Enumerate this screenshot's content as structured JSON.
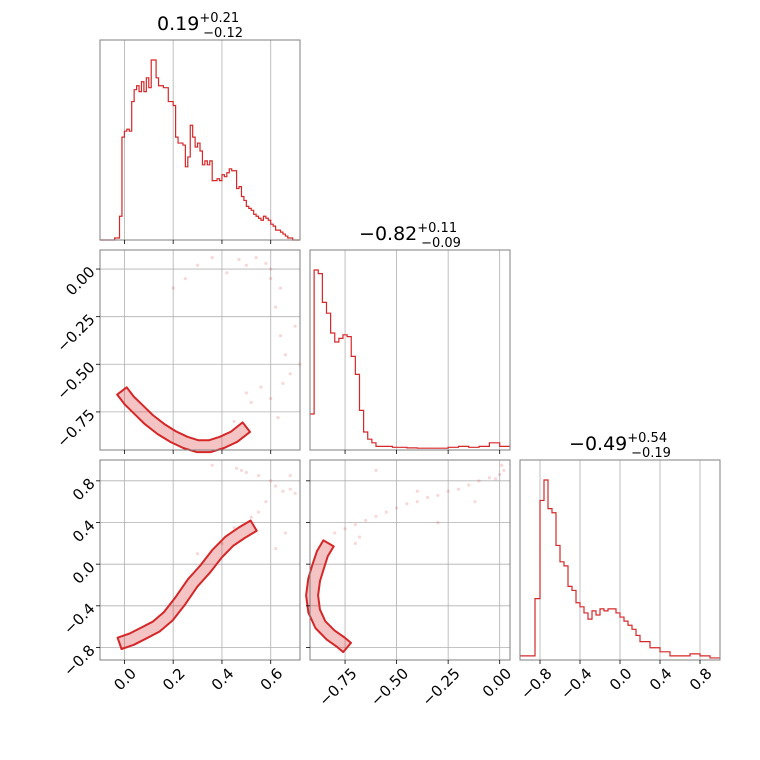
{
  "chart_data": [
    {
      "type": "histogram",
      "panel": "1-1",
      "title": {
        "main": "0.19",
        "upper": "+0.21",
        "lower": "−0.12"
      },
      "xlim": [
        -0.1,
        0.72
      ],
      "xticks": [
        0.0,
        0.2,
        0.4,
        0.6
      ],
      "tick_labels_shown": false,
      "bins": [
        -0.1,
        -0.09,
        -0.08,
        -0.07,
        -0.06,
        -0.05,
        -0.04,
        -0.03,
        -0.02,
        -0.01,
        0.0,
        0.01,
        0.02,
        0.03,
        0.04,
        0.05,
        0.06,
        0.07,
        0.08,
        0.09,
        0.1,
        0.11,
        0.12,
        0.13,
        0.14,
        0.15,
        0.16,
        0.17,
        0.18,
        0.19,
        0.2,
        0.21,
        0.22,
        0.23,
        0.24,
        0.25,
        0.26,
        0.27,
        0.28,
        0.29,
        0.3,
        0.31,
        0.32,
        0.33,
        0.34,
        0.35,
        0.36,
        0.37,
        0.38,
        0.39,
        0.4,
        0.41,
        0.42,
        0.43,
        0.44,
        0.45,
        0.46,
        0.47,
        0.48,
        0.49,
        0.5,
        0.51,
        0.52,
        0.53,
        0.54,
        0.55,
        0.56,
        0.57,
        0.58,
        0.59,
        0.6,
        0.61,
        0.62,
        0.63,
        0.64,
        0.65,
        0.66,
        0.67,
        0.68,
        0.69,
        0.7,
        0.71
      ],
      "counts": [
        0,
        0,
        0,
        0,
        0,
        0,
        0.01,
        0.01,
        0.12,
        0.52,
        0.55,
        0.56,
        0.55,
        0.7,
        0.76,
        0.78,
        0.75,
        0.8,
        0.75,
        0.82,
        0.77,
        0.91,
        0.91,
        0.82,
        0.78,
        0.78,
        0.77,
        0.77,
        0.7,
        0.7,
        0.68,
        0.52,
        0.49,
        0.49,
        0.48,
        0.37,
        0.42,
        0.58,
        0.52,
        0.47,
        0.49,
        0.45,
        0.38,
        0.4,
        0.38,
        0.4,
        0.3,
        0.3,
        0.31,
        0.3,
        0.33,
        0.32,
        0.34,
        0.36,
        0.35,
        0.35,
        0.26,
        0.27,
        0.22,
        0.2,
        0.17,
        0.16,
        0.15,
        0.13,
        0.12,
        0.11,
        0.1,
        0.12,
        0.11,
        0.1,
        0.08,
        0.07,
        0.05,
        0.05,
        0.04,
        0.03,
        0.02,
        0.01,
        0.01,
        0.0,
        0.0,
        0.0
      ]
    },
    {
      "type": "histogram",
      "panel": "2-2",
      "title": {
        "main": "−0.82",
        "upper": "+0.11",
        "lower": "−0.09"
      },
      "xlim": [
        -0.92,
        0.05
      ],
      "xticks": [
        -0.75,
        -0.5,
        -0.25,
        0.0
      ],
      "tick_labels_shown": false,
      "bins": [
        -0.92,
        -0.9,
        -0.88,
        -0.86,
        -0.84,
        -0.82,
        -0.8,
        -0.78,
        -0.76,
        -0.74,
        -0.72,
        -0.7,
        -0.68,
        -0.66,
        -0.64,
        -0.62,
        -0.6,
        -0.58,
        -0.56,
        -0.54,
        -0.52,
        -0.5,
        -0.45,
        -0.4,
        -0.35,
        -0.3,
        -0.25,
        -0.2,
        -0.15,
        -0.1,
        -0.05,
        0.0
      ],
      "counts": [
        0.2,
        1.0,
        0.98,
        0.82,
        0.76,
        0.65,
        0.6,
        0.62,
        0.64,
        0.63,
        0.52,
        0.42,
        0.22,
        0.1,
        0.06,
        0.04,
        0.02,
        0.02,
        0.02,
        0.02,
        0.015,
        0.015,
        0.012,
        0.01,
        0.01,
        0.01,
        0.015,
        0.02,
        0.015,
        0.02,
        0.04,
        0.02
      ]
    },
    {
      "type": "histogram",
      "panel": "3-3",
      "title": {
        "main": "−0.49",
        "upper": "+0.54",
        "lower": "−0.19"
      },
      "xlim": [
        -1.0,
        1.0
      ],
      "xticks": [
        -0.8,
        -0.4,
        0.0,
        0.4,
        0.8
      ],
      "xticklabels": [
        "−0.8",
        "−0.4",
        "0.0",
        "0.4",
        "0.8"
      ],
      "bins": [
        -1.0,
        -0.95,
        -0.9,
        -0.85,
        -0.8,
        -0.76,
        -0.72,
        -0.68,
        -0.64,
        -0.6,
        -0.56,
        -0.52,
        -0.48,
        -0.44,
        -0.4,
        -0.36,
        -0.32,
        -0.28,
        -0.24,
        -0.2,
        -0.16,
        -0.12,
        -0.08,
        -0.04,
        0.0,
        0.04,
        0.08,
        0.12,
        0.16,
        0.2,
        0.3,
        0.4,
        0.5,
        0.6,
        0.7,
        0.8,
        0.9
      ],
      "counts": [
        0.02,
        0.02,
        0.02,
        0.3,
        0.78,
        0.88,
        0.74,
        0.72,
        0.56,
        0.48,
        0.46,
        0.36,
        0.34,
        0.28,
        0.26,
        0.23,
        0.2,
        0.24,
        0.22,
        0.25,
        0.24,
        0.25,
        0.25,
        0.23,
        0.21,
        0.19,
        0.17,
        0.15,
        0.12,
        0.09,
        0.06,
        0.04,
        0.02,
        0.02,
        0.03,
        0.02,
        0.01
      ]
    },
    {
      "type": "scatter",
      "panel": "2-1",
      "description_of_contours": "filled 2D density contours",
      "xlim": [
        -0.1,
        0.72
      ],
      "ylim": [
        -0.95,
        0.1
      ],
      "xticks": [
        0.0,
        0.2,
        0.4,
        0.6
      ],
      "yticks": [
        0.0,
        -0.25,
        -0.5,
        -0.75
      ],
      "yticklabels": [
        "0.00",
        "−0.25",
        "−0.50",
        "−0.75"
      ],
      "density_ridge": {
        "x": [
          -0.01,
          0.02,
          0.06,
          0.1,
          0.15,
          0.2,
          0.25,
          0.3,
          0.35,
          0.4,
          0.45,
          0.5
        ],
        "y": [
          -0.64,
          -0.69,
          -0.74,
          -0.79,
          -0.84,
          -0.88,
          -0.91,
          -0.93,
          -0.93,
          -0.91,
          -0.88,
          -0.83
        ]
      },
      "sparse_points": {
        "x": [
          0.2,
          0.25,
          0.3,
          0.36,
          0.42,
          0.47,
          0.5,
          0.54,
          0.58,
          0.6,
          0.62,
          0.64,
          0.66,
          0.68,
          0.52,
          0.56,
          0.6,
          0.63,
          0.65,
          0.45,
          0.5,
          0.7,
          0.72,
          0.6,
          0.64
        ],
        "y": [
          -0.1,
          -0.05,
          0.02,
          0.06,
          -0.02,
          0.05,
          0.02,
          0.06,
          0.03,
          -0.05,
          -0.2,
          -0.35,
          -0.45,
          -0.55,
          -0.7,
          -0.62,
          -0.68,
          -0.78,
          -0.6,
          -0.8,
          -0.65,
          -0.3,
          -0.5,
          0.0,
          -0.1
        ]
      }
    },
    {
      "type": "scatter",
      "panel": "3-1",
      "xlim": [
        -0.1,
        0.72
      ],
      "ylim": [
        -0.92,
        1.0
      ],
      "xticks": [
        0.0,
        0.2,
        0.4,
        0.6
      ],
      "xticklabels": [
        "0.0",
        "0.2",
        "0.4",
        "0.6"
      ],
      "yticks": [
        0.8,
        0.4,
        0.0,
        -0.4,
        -0.8
      ],
      "yticklabels": [
        "0.8",
        "0.4",
        "0.0",
        "−0.4",
        "−0.8"
      ],
      "density_ridge": {
        "x": [
          -0.02,
          0.03,
          0.08,
          0.13,
          0.18,
          0.23,
          0.28,
          0.33,
          0.38,
          0.43,
          0.48,
          0.53
        ],
        "y": [
          -0.76,
          -0.72,
          -0.66,
          -0.6,
          -0.5,
          -0.35,
          -0.18,
          -0.05,
          0.1,
          0.22,
          0.3,
          0.37
        ]
      },
      "sparse_points": {
        "x": [
          0.36,
          0.46,
          0.48,
          0.5,
          0.55,
          0.6,
          0.62,
          0.65,
          0.68,
          0.7,
          0.58,
          0.55,
          0.52,
          0.45,
          0.4,
          0.3,
          0.66,
          0.62,
          0.68
        ],
        "y": [
          0.95,
          0.92,
          0.9,
          0.88,
          0.85,
          0.8,
          0.75,
          0.7,
          0.72,
          0.68,
          0.6,
          0.5,
          0.45,
          0.35,
          0.2,
          0.1,
          0.3,
          0.15,
          0.85
        ]
      }
    },
    {
      "type": "scatter",
      "panel": "3-2",
      "xlim": [
        -0.92,
        0.05
      ],
      "ylim": [
        -0.92,
        1.0
      ],
      "xticks": [
        -0.75,
        -0.5,
        -0.25,
        0.0
      ],
      "xticklabels": [
        "−0.75",
        "−0.50",
        "−0.25",
        "0.00"
      ],
      "yticks": [
        0.8,
        0.4,
        0.0,
        -0.4,
        -0.8
      ],
      "tick_labels_shown_y": false,
      "density_ridge": {
        "x": [
          -0.74,
          -0.77,
          -0.82,
          -0.87,
          -0.9,
          -0.91,
          -0.9,
          -0.88,
          -0.86,
          -0.83
        ],
        "y": [
          -0.8,
          -0.75,
          -0.68,
          -0.58,
          -0.45,
          -0.3,
          -0.15,
          -0.02,
          0.1,
          0.2
        ]
      },
      "sparse_points": {
        "x": [
          -0.8,
          -0.75,
          -0.7,
          -0.65,
          -0.6,
          -0.55,
          -0.5,
          -0.45,
          -0.4,
          -0.35,
          -0.3,
          -0.25,
          -0.2,
          -0.15,
          -0.1,
          -0.05,
          0.0,
          0.02,
          -0.02,
          -0.6,
          -0.4,
          -0.3,
          -0.12,
          -0.7,
          -0.68,
          0.01
        ],
        "y": [
          0.3,
          0.34,
          0.38,
          0.42,
          0.46,
          0.5,
          0.54,
          0.58,
          0.6,
          0.64,
          0.66,
          0.7,
          0.72,
          0.76,
          0.8,
          0.83,
          0.86,
          0.9,
          0.82,
          0.9,
          0.7,
          0.4,
          0.6,
          0.2,
          0.26,
          0.95
        ]
      }
    }
  ]
}
